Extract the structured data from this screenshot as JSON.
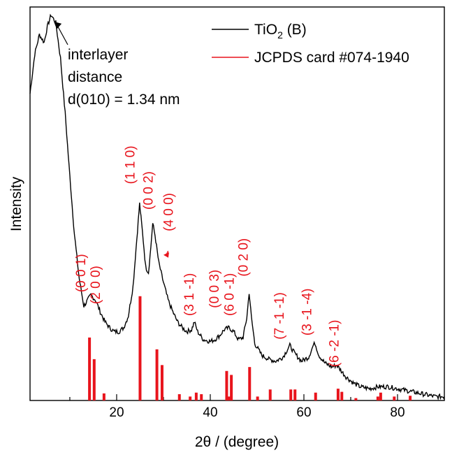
{
  "chart_data": {
    "type": "line",
    "xlabel": "2θ / (degree)",
    "ylabel": "Intensity",
    "xlim": [
      1.5,
      90
    ],
    "ylim": [
      0,
      1
    ],
    "x_ticks": [
      20,
      40,
      60,
      80
    ],
    "x_tick_labels": [
      "20",
      "40",
      "60",
      "80"
    ],
    "legend_position": "top-right",
    "legend": [
      {
        "label_main": "TiO",
        "label_sub": "2",
        "label_rest": " (B)",
        "color": "#000000"
      },
      {
        "label_main": "JCPDS card #074-1940",
        "color": "#e8141c"
      }
    ],
    "series": [
      {
        "name": "TiO2 (B)",
        "color": "#000000",
        "points": [
          [
            1.5,
            0.78
          ],
          [
            2.5,
            0.88
          ],
          [
            3.5,
            0.93
          ],
          [
            4.5,
            0.91
          ],
          [
            5.2,
            0.95
          ],
          [
            6.0,
            0.98
          ],
          [
            7.0,
            0.96
          ],
          [
            8.0,
            0.87
          ],
          [
            9.0,
            0.73
          ],
          [
            10.0,
            0.57
          ],
          [
            11.0,
            0.42
          ],
          [
            12.0,
            0.31
          ],
          [
            13.0,
            0.24
          ],
          [
            13.8,
            0.255
          ],
          [
            14.5,
            0.268
          ],
          [
            15.5,
            0.255
          ],
          [
            16.5,
            0.225
          ],
          [
            17.5,
            0.2
          ],
          [
            18.5,
            0.185
          ],
          [
            19.5,
            0.175
          ],
          [
            20.5,
            0.175
          ],
          [
            21.5,
            0.185
          ],
          [
            22.5,
            0.215
          ],
          [
            23.5,
            0.29
          ],
          [
            24.3,
            0.41
          ],
          [
            24.9,
            0.5
          ],
          [
            25.5,
            0.43
          ],
          [
            26.2,
            0.34
          ],
          [
            26.8,
            0.325
          ],
          [
            27.3,
            0.39
          ],
          [
            27.7,
            0.45
          ],
          [
            28.2,
            0.42
          ],
          [
            29.0,
            0.35
          ],
          [
            30.0,
            0.3
          ],
          [
            31.0,
            0.255
          ],
          [
            32.0,
            0.225
          ],
          [
            33.0,
            0.2
          ],
          [
            34.0,
            0.185
          ],
          [
            35.0,
            0.175
          ],
          [
            36.0,
            0.18
          ],
          [
            36.6,
            0.2
          ],
          [
            37.3,
            0.175
          ],
          [
            38.5,
            0.155
          ],
          [
            40.0,
            0.15
          ],
          [
            41.0,
            0.155
          ],
          [
            42.0,
            0.165
          ],
          [
            43.0,
            0.18
          ],
          [
            44.0,
            0.185
          ],
          [
            45.0,
            0.175
          ],
          [
            46.0,
            0.155
          ],
          [
            47.0,
            0.16
          ],
          [
            47.8,
            0.21
          ],
          [
            48.3,
            0.275
          ],
          [
            48.8,
            0.21
          ],
          [
            49.5,
            0.145
          ],
          [
            51.0,
            0.115
          ],
          [
            52.5,
            0.105
          ],
          [
            54.0,
            0.1
          ],
          [
            55.5,
            0.11
          ],
          [
            56.5,
            0.13
          ],
          [
            57.0,
            0.14
          ],
          [
            58.0,
            0.12
          ],
          [
            59.5,
            0.1
          ],
          [
            61.0,
            0.11
          ],
          [
            62.0,
            0.14
          ],
          [
            62.4,
            0.145
          ],
          [
            63.2,
            0.115
          ],
          [
            64.5,
            0.095
          ],
          [
            66.0,
            0.085
          ],
          [
            67.0,
            0.09
          ],
          [
            68.0,
            0.075
          ],
          [
            69.0,
            0.06
          ],
          [
            70.5,
            0.045
          ],
          [
            72.0,
            0.035
          ],
          [
            74.0,
            0.03
          ],
          [
            76.0,
            0.035
          ],
          [
            78.0,
            0.035
          ],
          [
            80.0,
            0.03
          ],
          [
            82.0,
            0.025
          ],
          [
            84.0,
            0.02
          ],
          [
            86.0,
            0.015
          ],
          [
            88.0,
            0.01
          ],
          [
            90.0,
            0.01
          ]
        ]
      },
      {
        "name": "JCPDS card #074-1940",
        "color": "#e8141c",
        "type": "bar",
        "points": [
          [
            14.2,
            0.16
          ],
          [
            15.2,
            0.105
          ],
          [
            17.3,
            0.018
          ],
          [
            25.0,
            0.265
          ],
          [
            28.6,
            0.13
          ],
          [
            29.7,
            0.09
          ],
          [
            33.4,
            0.016
          ],
          [
            35.7,
            0.01
          ],
          [
            37.0,
            0.02
          ],
          [
            38.1,
            0.016
          ],
          [
            43.5,
            0.075
          ],
          [
            44.5,
            0.065
          ],
          [
            44.0,
            0.01
          ],
          [
            48.4,
            0.085
          ],
          [
            50.1,
            0.01
          ],
          [
            52.8,
            0.028
          ],
          [
            57.2,
            0.028
          ],
          [
            58.1,
            0.028
          ],
          [
            62.5,
            0.02
          ],
          [
            67.3,
            0.03
          ],
          [
            68.1,
            0.022
          ],
          [
            71.1,
            0.006
          ],
          [
            75.8,
            0.01
          ],
          [
            76.4,
            0.02
          ],
          [
            79.3,
            0.01
          ],
          [
            82.7,
            0.012
          ]
        ]
      }
    ],
    "peak_labels": [
      {
        "text": "(0 0 1)",
        "x": 13.3,
        "y": 0.275
      },
      {
        "text": "(2 0 0)",
        "x": 16.4,
        "y": 0.245
      },
      {
        "text": "(1 1 0)",
        "x": 23.8,
        "y": 0.55
      },
      {
        "text": "(0 0 2)",
        "x": 27.7,
        "y": 0.485
      },
      {
        "text": "(4 0 0)",
        "x": 32.0,
        "y": 0.43
      },
      {
        "text": "(3 1 -1)",
        "x": 36.4,
        "y": 0.215
      },
      {
        "text": "(0 0 3)",
        "x": 41.8,
        "y": 0.235
      },
      {
        "text": "(6 0 -1)",
        "x": 45.0,
        "y": 0.215
      },
      {
        "text": "(0 2 0)",
        "x": 48.0,
        "y": 0.315
      },
      {
        "text": "(7 -1 -1)",
        "x": 55.7,
        "y": 0.155
      },
      {
        "text": "(3 -1 -4)",
        "x": 61.6,
        "y": 0.165
      },
      {
        "text": "(6 -2 -1)",
        "x": 67.4,
        "y": 0.085
      }
    ],
    "annotation": {
      "lines": [
        "interlayer",
        "distance",
        "d(010) = 1.34 nm"
      ],
      "arrow_to_x": 6.0,
      "arrow_to_y": 0.97
    },
    "arrow_400": {
      "from_x": 31.0,
      "from_y": 0.38,
      "to_x": 30.0,
      "to_y": 0.37
    }
  }
}
